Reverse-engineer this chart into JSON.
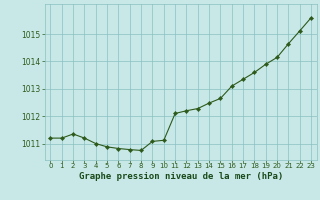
{
  "x": [
    0,
    1,
    2,
    3,
    4,
    5,
    6,
    7,
    8,
    9,
    10,
    11,
    12,
    13,
    14,
    15,
    16,
    17,
    18,
    19,
    20,
    21,
    22,
    23
  ],
  "y": [
    1011.2,
    1011.2,
    1011.35,
    1011.2,
    1011.0,
    1010.88,
    1010.82,
    1010.78,
    1010.75,
    1011.08,
    1011.12,
    1012.1,
    1012.2,
    1012.28,
    1012.48,
    1012.65,
    1013.1,
    1013.35,
    1013.6,
    1013.9,
    1014.15,
    1014.65,
    1015.12,
    1015.6
  ],
  "line_color": "#2d5a1b",
  "marker_color": "#2d5a1b",
  "bg_color": "#c8e8e8",
  "grid_color": "#89c0c0",
  "title": "Graphe pression niveau de la mer (hPa)",
  "title_color": "#1a4a1a",
  "ylim_min": 1010.4,
  "ylim_max": 1016.1,
  "yticks": [
    1011,
    1012,
    1013,
    1014,
    1015
  ],
  "xtick_labels": [
    "0",
    "1",
    "2",
    "3",
    "4",
    "5",
    "6",
    "7",
    "8",
    "9",
    "10",
    "11",
    "12",
    "13",
    "14",
    "15",
    "16",
    "17",
    "18",
    "19",
    "20",
    "21",
    "22",
    "23"
  ]
}
